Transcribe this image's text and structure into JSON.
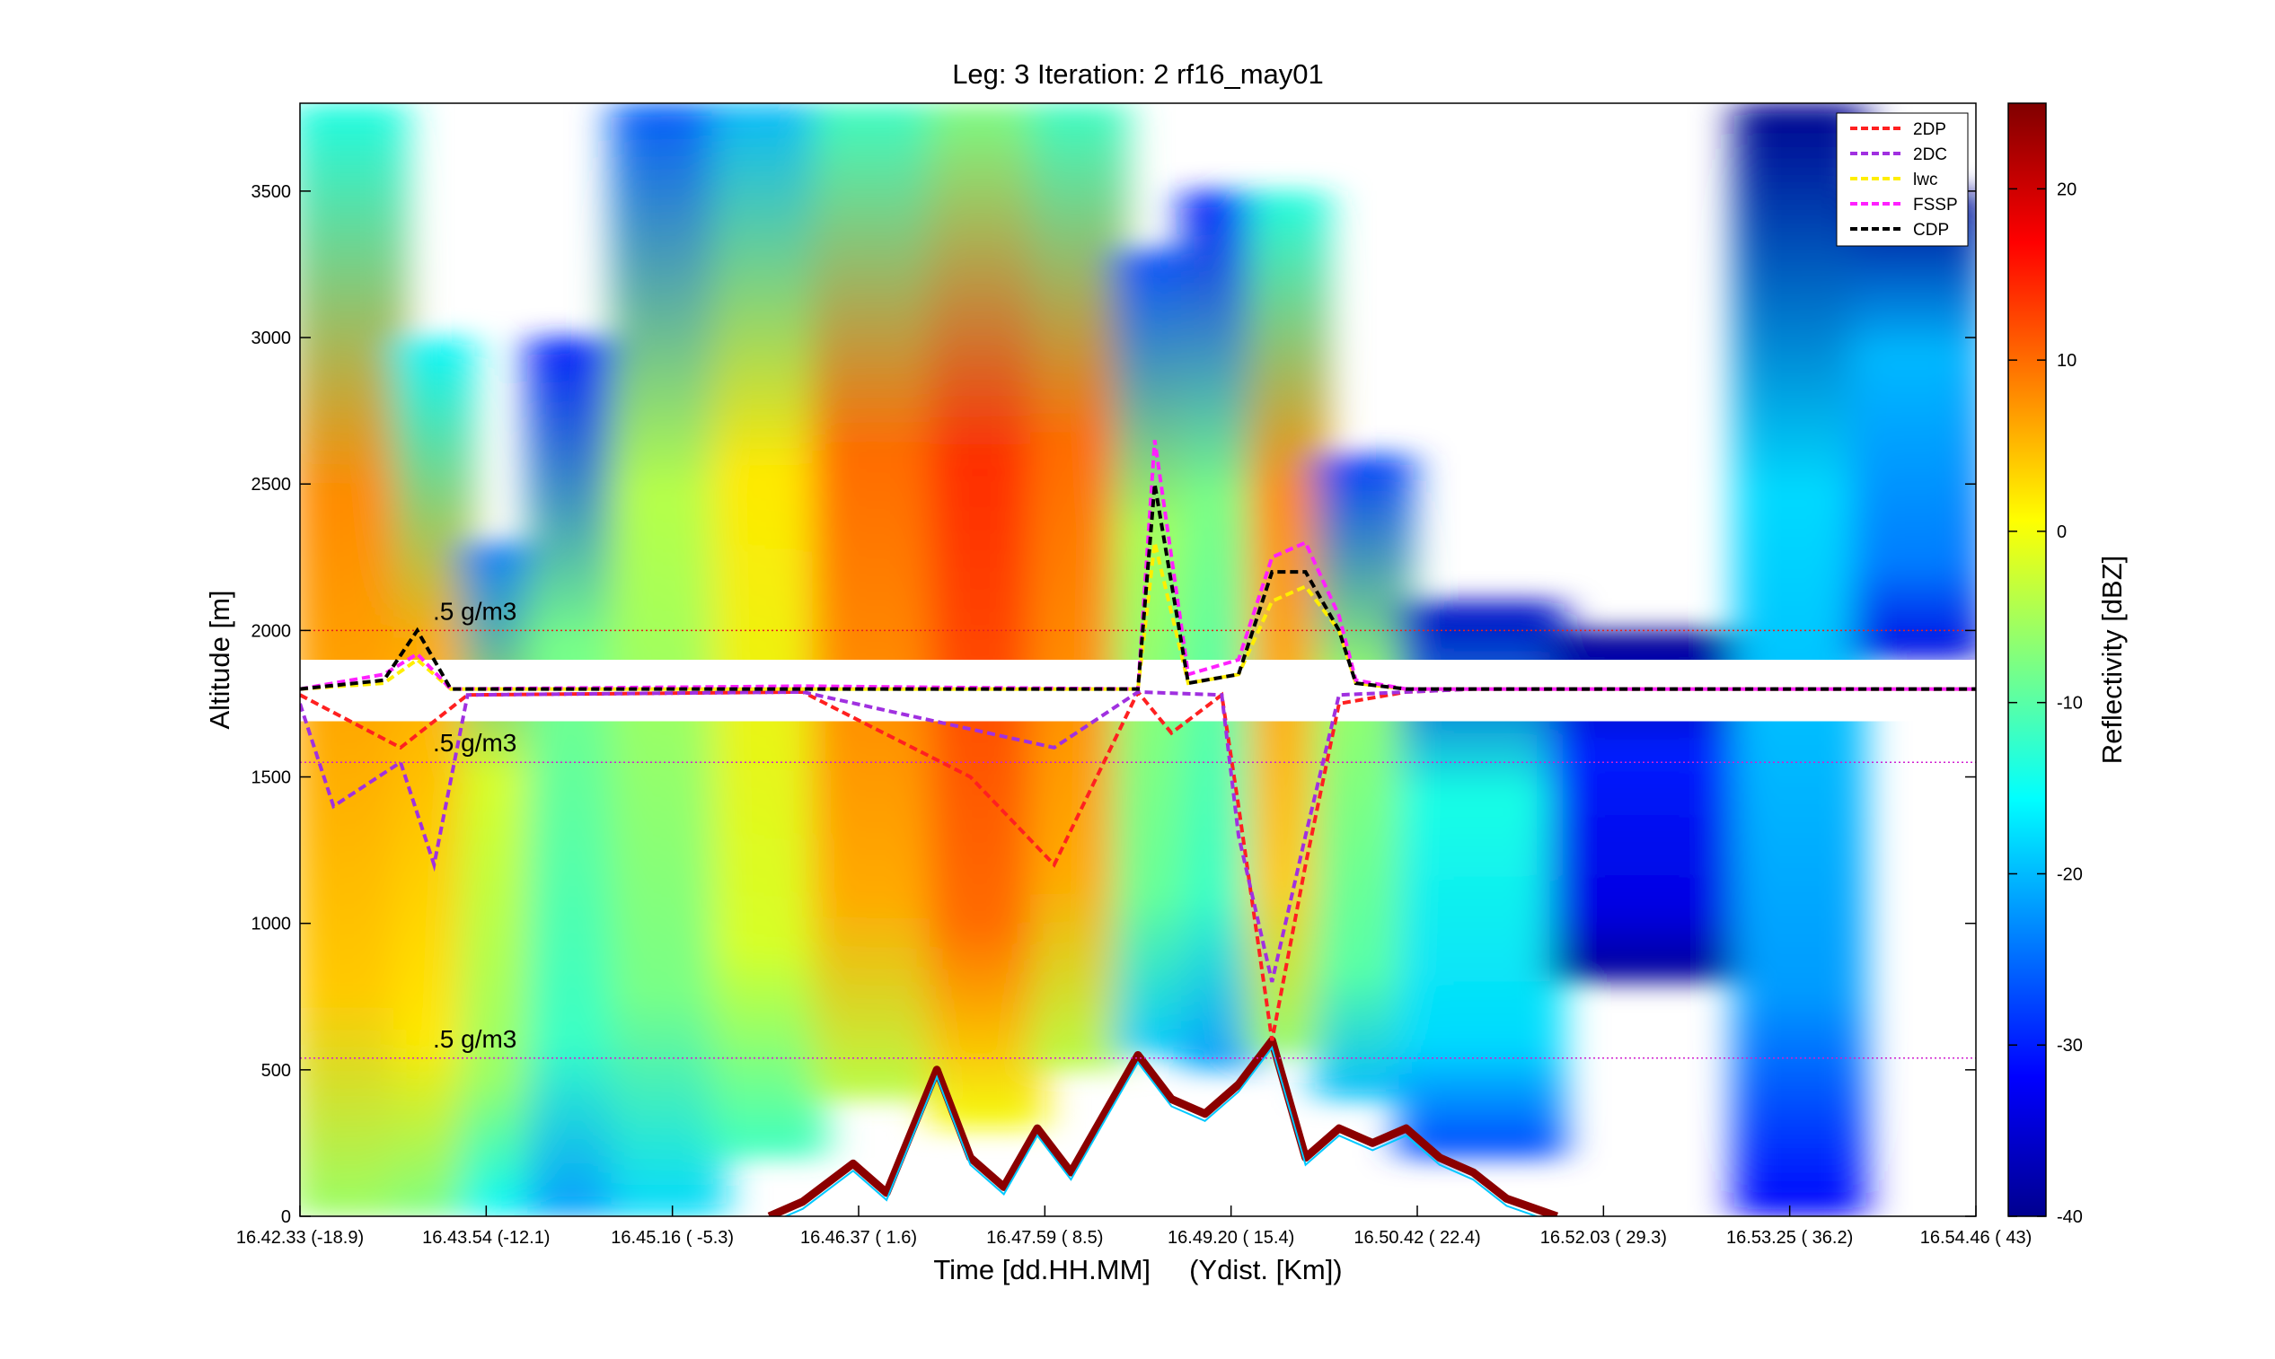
{
  "chart_data": {
    "type": "heatmap",
    "title": "Leg: 3  Iteration: 2  rf16_may01",
    "xlabel": "Time [dd.HH.MM]     (Ydist. [Km])",
    "ylabel": "Altitude [m]",
    "ylim": [
      0,
      3800
    ],
    "yticks": [
      0,
      500,
      1000,
      1500,
      2000,
      2500,
      3000,
      3500
    ],
    "x_tick_labels": [
      {
        "time": "16.42.33",
        "dist": "(-18.9)"
      },
      {
        "time": "16.43.54",
        "dist": "(-12.1)"
      },
      {
        "time": "16.45.16",
        "dist": "( -5.3)"
      },
      {
        "time": "16.46.37",
        "dist": "(  1.6)"
      },
      {
        "time": "16.47.59",
        "dist": "(  8.5)"
      },
      {
        "time": "16.49.20",
        "dist": "( 15.4)"
      },
      {
        "time": "16.50.42",
        "dist": "( 22.4)"
      },
      {
        "time": "16.52.03",
        "dist": "( 29.3)"
      },
      {
        "time": "16.53.25",
        "dist": "( 36.2)"
      },
      {
        "time": "16.54.46",
        "dist": "(  43)"
      }
    ],
    "colorbar": {
      "label": "Reflectivity [dBZ]",
      "range": [
        -40,
        25
      ],
      "ticks": [
        -40,
        -30,
        -20,
        -10,
        0,
        10,
        20
      ]
    },
    "annotations": [
      {
        "text": ".5 g/m3",
        "altitude": 2000
      },
      {
        "text": ".5 g/m3",
        "altitude": 1550
      },
      {
        "text": ".5 g/m3",
        "altitude": 540
      }
    ],
    "reference_lines": [
      {
        "altitude": 2000,
        "color": "#e8201f"
      },
      {
        "altitude": 1550,
        "color": "#d020d0"
      },
      {
        "altitude": 540,
        "color": "#d020d0"
      }
    ],
    "flight_altitude": 1800,
    "legend": {
      "placement": "top-right",
      "entries": [
        {
          "name": "2DP",
          "color": "#ff2020"
        },
        {
          "name": "2DC",
          "color": "#a030e0"
        },
        {
          "name": "lwc",
          "color": "#ffee00"
        },
        {
          "name": "FSSP",
          "color": "#ff20ff"
        },
        {
          "name": "CDP",
          "color": "#000000"
        }
      ]
    },
    "reflectivity_columns": [
      {
        "x": 0.0,
        "top": 3800,
        "bottom": 0,
        "core": 8
      },
      {
        "x": 0.06,
        "top": 3000,
        "bottom": 0,
        "core": 6
      },
      {
        "x": 0.1,
        "top": 2300,
        "bottom": 0,
        "core": -2
      },
      {
        "x": 0.14,
        "top": 3000,
        "bottom": 0,
        "core": -8
      },
      {
        "x": 0.19,
        "top": 3800,
        "bottom": 0,
        "core": -4
      },
      {
        "x": 0.25,
        "top": 3800,
        "bottom": 200,
        "core": 2
      },
      {
        "x": 0.31,
        "top": 3800,
        "bottom": 400,
        "core": 10
      },
      {
        "x": 0.38,
        "top": 3800,
        "bottom": 300,
        "core": 14
      },
      {
        "x": 0.44,
        "top": 3800,
        "bottom": 500,
        "core": 10
      },
      {
        "x": 0.49,
        "top": 3300,
        "bottom": 550,
        "core": -5
      },
      {
        "x": 0.53,
        "top": 3500,
        "bottom": 500,
        "core": -8
      },
      {
        "x": 0.57,
        "top": 3500,
        "bottom": 550,
        "core": 8
      },
      {
        "x": 0.61,
        "top": 2600,
        "bottom": 400,
        "core": -6
      },
      {
        "x": 0.66,
        "top": 2100,
        "bottom": 200,
        "core": -14
      },
      {
        "x": 0.75,
        "top": 2000,
        "bottom": 800,
        "core": -30
      },
      {
        "x": 0.86,
        "top": 3800,
        "bottom": 0,
        "core": -18
      },
      {
        "x": 0.93,
        "top": 3500,
        "bottom": 1900,
        "core": -20
      },
      {
        "x": 1.0,
        "top": 3500,
        "bottom": 1900,
        "core": -22
      }
    ],
    "series": [
      {
        "name": "2DP",
        "x": [
          0.0,
          0.06,
          0.1,
          0.3,
          0.4,
          0.45,
          0.5,
          0.52,
          0.55,
          0.56,
          0.58,
          0.6,
          0.62,
          0.66,
          0.7,
          1.0
        ],
        "y": [
          1780,
          1600,
          1780,
          1790,
          1500,
          1200,
          1790,
          1650,
          1780,
          1400,
          600,
          1200,
          1750,
          1790,
          1800,
          1800
        ]
      },
      {
        "name": "2DC",
        "x": [
          0.0,
          0.02,
          0.06,
          0.08,
          0.1,
          0.3,
          0.45,
          0.5,
          0.55,
          0.56,
          0.58,
          0.6,
          0.62,
          0.66,
          0.7,
          1.0
        ],
        "y": [
          1750,
          1400,
          1550,
          1200,
          1780,
          1790,
          1600,
          1790,
          1780,
          1300,
          800,
          1300,
          1780,
          1790,
          1800,
          1800
        ]
      },
      {
        "name": "lwc",
        "x": [
          0.0,
          0.05,
          0.07,
          0.09,
          0.3,
          0.5,
          0.51,
          0.53,
          0.56,
          0.58,
          0.6,
          0.62,
          0.63,
          0.66,
          1.0
        ],
        "y": [
          1800,
          1820,
          1900,
          1800,
          1800,
          1800,
          2300,
          1820,
          1850,
          2100,
          2150,
          2000,
          1820,
          1800,
          1800
        ]
      },
      {
        "name": "FSSP",
        "x": [
          0.0,
          0.05,
          0.07,
          0.09,
          0.3,
          0.5,
          0.51,
          0.53,
          0.56,
          0.58,
          0.6,
          0.62,
          0.63,
          0.66,
          1.0
        ],
        "y": [
          1800,
          1850,
          1920,
          1800,
          1810,
          1800,
          2650,
          1850,
          1900,
          2250,
          2300,
          2050,
          1830,
          1800,
          1800
        ]
      },
      {
        "name": "CDP",
        "x": [
          0.0,
          0.05,
          0.07,
          0.09,
          0.3,
          0.5,
          0.51,
          0.53,
          0.56,
          0.58,
          0.6,
          0.62,
          0.63,
          0.66,
          1.0
        ],
        "y": [
          1800,
          1830,
          2000,
          1800,
          1800,
          1800,
          2500,
          1820,
          1850,
          2200,
          2200,
          2000,
          1820,
          1800,
          1800
        ]
      }
    ],
    "surface_echo": {
      "x": [
        0.28,
        0.3,
        0.33,
        0.35,
        0.38,
        0.4,
        0.42,
        0.44,
        0.46,
        0.48,
        0.5,
        0.52,
        0.54,
        0.56,
        0.58,
        0.6,
        0.62,
        0.64,
        0.66,
        0.68,
        0.7,
        0.72,
        0.75
      ],
      "y": [
        0,
        50,
        180,
        80,
        500,
        200,
        100,
        300,
        150,
        350,
        550,
        400,
        350,
        450,
        600,
        200,
        300,
        250,
        300,
        200,
        150,
        60,
        0
      ]
    }
  }
}
